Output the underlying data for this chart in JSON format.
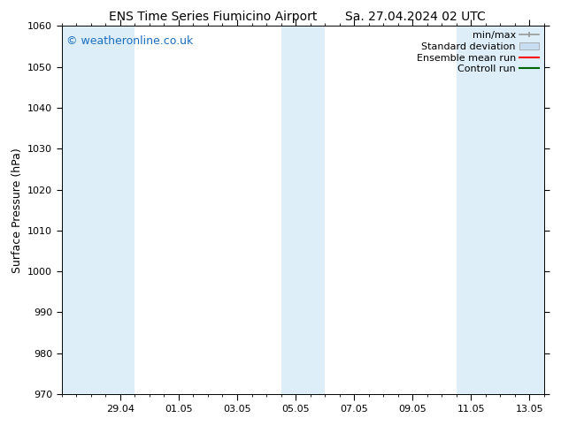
{
  "title_left": "ENS Time Series Fiumicino Airport",
  "title_right": "Sa. 27.04.2024 02 UTC",
  "ylabel": "Surface Pressure (hPa)",
  "ylim": [
    970,
    1060
  ],
  "yticks": [
    970,
    980,
    990,
    1000,
    1010,
    1020,
    1030,
    1040,
    1050,
    1060
  ],
  "xlim_start": 0.0,
  "xlim_end": 16.5,
  "xtick_labels": [
    "29.04",
    "01.05",
    "03.05",
    "05.05",
    "07.05",
    "09.05",
    "11.05",
    "13.05"
  ],
  "xtick_positions": [
    2.0,
    4.0,
    6.0,
    8.0,
    10.0,
    12.0,
    14.0,
    16.0
  ],
  "shaded_bands": [
    {
      "x_start": 0.0,
      "x_end": 2.5
    },
    {
      "x_start": 7.5,
      "x_end": 9.0
    },
    {
      "x_start": 13.5,
      "x_end": 16.5
    }
  ],
  "shaded_color": "#ddeef8",
  "background_color": "#ffffff",
  "watermark_text": "© weatheronline.co.uk",
  "watermark_color": "#1a6fbf",
  "legend_items": [
    {
      "label": "min/max",
      "color": "#999999",
      "type": "errorbar"
    },
    {
      "label": "Standard deviation",
      "color": "#c8ddf0",
      "type": "bar"
    },
    {
      "label": "Ensemble mean run",
      "color": "#ff0000",
      "type": "line"
    },
    {
      "label": "Controll run",
      "color": "#006400",
      "type": "line"
    }
  ],
  "title_fontsize": 10,
  "legend_fontsize": 8,
  "tick_fontsize": 8,
  "ylabel_fontsize": 9,
  "watermark_fontsize": 9
}
